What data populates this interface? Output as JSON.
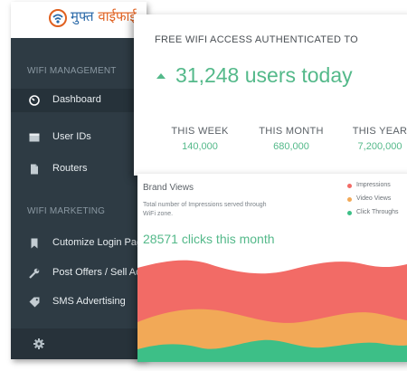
{
  "logo": {
    "text_blue": "मुफ्त ",
    "text_orange": "वाईफाई"
  },
  "colors": {
    "sidebar": "#2e3b44",
    "accent_green": "#54b98a",
    "impressions": "#f26b66",
    "video_views": "#f2a957",
    "click_throughs": "#3dbf87"
  },
  "sidebar": {
    "sections": [
      {
        "title": "WIFI MANAGEMENT",
        "items": [
          {
            "label": "Dashboard",
            "icon": "dashboard-gauge-icon",
            "active": true
          },
          {
            "label": "User IDs",
            "icon": "card-icon",
            "active": false
          },
          {
            "label": "Routers",
            "icon": "document-icon",
            "active": false
          }
        ]
      },
      {
        "title": "WIFI MARKETING",
        "items": [
          {
            "label": "Cutomize Login Page",
            "icon": "bookmark-icon",
            "active": false
          },
          {
            "label": "Post Offers / Sell Ads",
            "icon": "wrench-icon",
            "active": false
          },
          {
            "label": "SMS Advertising",
            "icon": "tag-icon",
            "active": false
          }
        ]
      }
    ],
    "settings_icon": "gear-icon"
  },
  "stats": {
    "title": "FREE WIFI ACCESS AUTHENTICATED TO",
    "headline": "31,248 users today",
    "trend_icon": "up-triangle-icon",
    "periods": [
      {
        "label": "THIS WEEK",
        "value": "140,000"
      },
      {
        "label": "THIS MONTH",
        "value": "680,000"
      },
      {
        "label": "THIS YEAR",
        "value": "7,200,000"
      }
    ]
  },
  "brand": {
    "title": "Brand Views",
    "subtitle": "Total number of Impressions served through WiFi zone.",
    "clicks": "28571 clicks this month",
    "legend": [
      {
        "label": "Impressions",
        "color": "#f26b66"
      },
      {
        "label": "Video Views",
        "color": "#f2a957"
      },
      {
        "label": "Click Throughs",
        "color": "#3dbf87"
      }
    ]
  }
}
